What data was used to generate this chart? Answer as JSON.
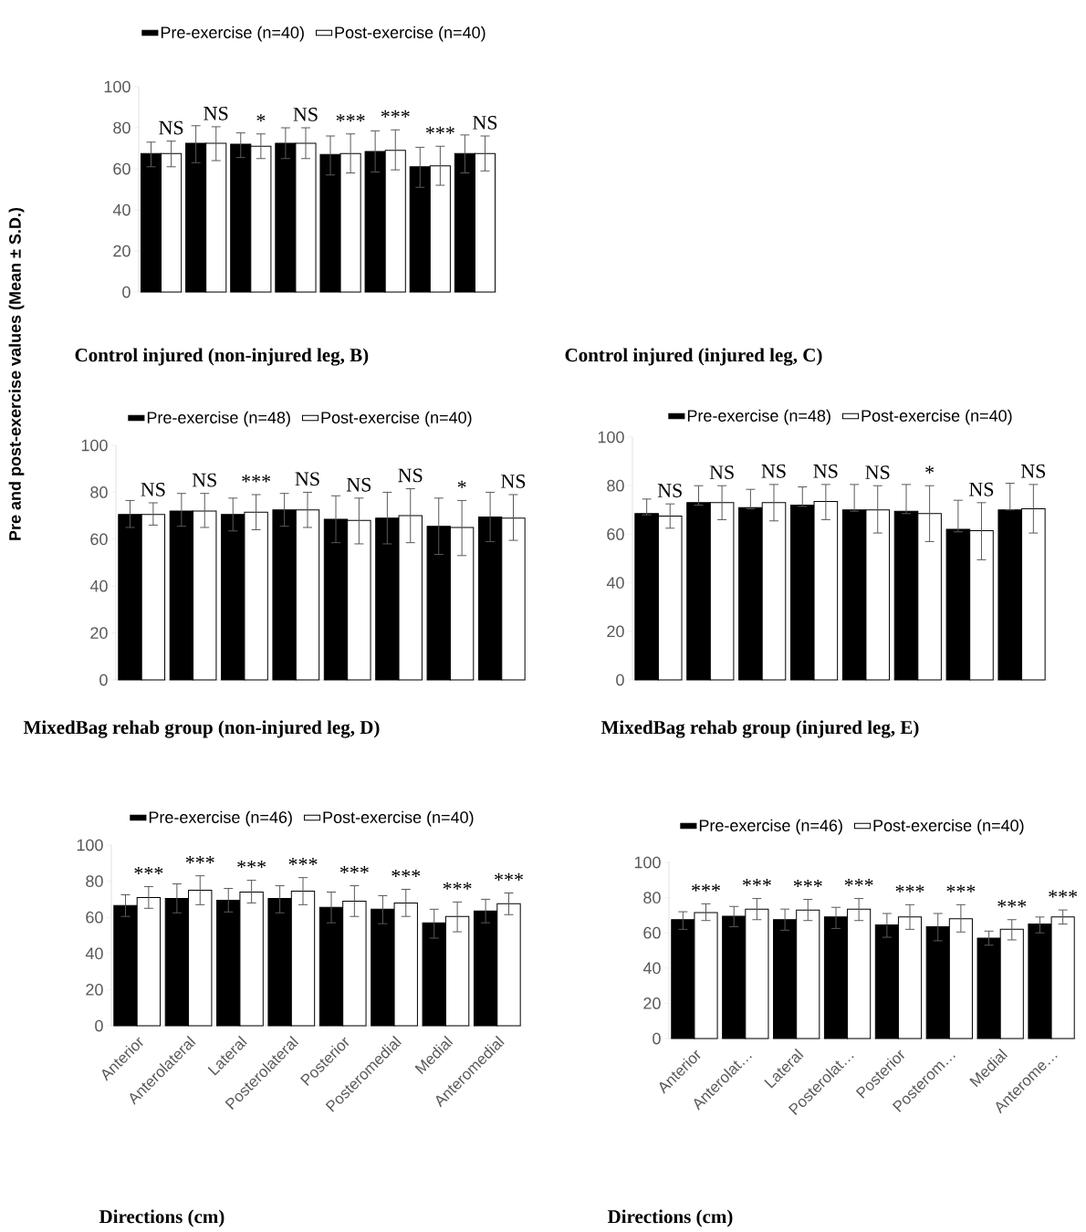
{
  "chart_data": [
    {
      "type": "bar",
      "categories": [
        null,
        null,
        null,
        null,
        null,
        null,
        null,
        null
      ],
      "ylim": [
        0,
        100
      ],
      "yticks": [
        0,
        20,
        40,
        60,
        80,
        100
      ],
      "legend": "top",
      "tick_labels": "y",
      "series": [
        {
          "name": "Pre-exercise (n=40)",
          "color": "#000000",
          "values": [
            67.5,
            72.5,
            72,
            72.5,
            67,
            68.5,
            61,
            67.5
          ],
          "errors": [
            [
              61,
              73
            ],
            [
              63,
              81
            ],
            [
              65.5,
              77.5
            ],
            [
              65,
              80
            ],
            [
              57,
              76
            ],
            [
              58.5,
              78.5
            ],
            [
              51,
              70.5
            ],
            [
              58,
              76.5
            ]
          ]
        },
        {
          "name": "Post-exercise (n=40)",
          "color": "#ffffff",
          "values": [
            67.5,
            72.5,
            71,
            72.5,
            67.5,
            69,
            61.5,
            67.5
          ],
          "errors": [
            [
              61,
              73.5
            ],
            [
              64,
              80.5
            ],
            [
              65,
              77
            ],
            [
              65,
              80
            ],
            [
              58,
              77
            ],
            [
              59.5,
              79
            ],
            [
              52,
              71
            ],
            [
              59,
              76
            ]
          ]
        }
      ],
      "annotations": [
        "NS",
        "NS",
        "*",
        "NS",
        "***",
        "***",
        "***",
        "NS"
      ]
    },
    {
      "type": "bar",
      "title": "Control injured (non-injured leg, B)",
      "ylabel": "Pre and post-exercise values (Mean ± S.D.)",
      "categories": [
        null,
        null,
        null,
        null,
        null,
        null,
        null,
        null
      ],
      "ylim": [
        0,
        100
      ],
      "yticks": [
        0,
        20,
        40,
        60,
        80,
        100
      ],
      "legend": "top",
      "tick_labels": "y",
      "series": [
        {
          "name": "Pre-exercise (n=48)",
          "color": "#000000",
          "values": [
            70.5,
            72,
            70.5,
            72.5,
            68.5,
            69,
            65.5,
            69.5
          ],
          "errors": [
            [
              65,
              76.5
            ],
            [
              65.5,
              79.5
            ],
            [
              63.5,
              77.5
            ],
            [
              65.5,
              79.5
            ],
            [
              58.5,
              78.5
            ],
            [
              58,
              80
            ],
            [
              53.5,
              77.5
            ],
            [
              59,
              80
            ]
          ]
        },
        {
          "name": "Post-exercise (n=40)",
          "color": "#ffffff",
          "values": [
            70.5,
            72,
            71.5,
            72.5,
            68,
            70,
            65,
            69
          ],
          "errors": [
            [
              66,
              75.5
            ],
            [
              65,
              79.5
            ],
            [
              64,
              79
            ],
            [
              65,
              80
            ],
            [
              58,
              77.5
            ],
            [
              58.5,
              81.5
            ],
            [
              53,
              76.5
            ],
            [
              59.5,
              79
            ]
          ]
        }
      ],
      "annotations": [
        "NS",
        "NS",
        "***",
        "NS",
        "NS",
        "NS",
        "*",
        "NS"
      ]
    },
    {
      "type": "bar",
      "title": "Control injured (injured leg, C)",
      "categories": [
        null,
        null,
        null,
        null,
        null,
        null,
        null,
        null
      ],
      "ylim": [
        0,
        100
      ],
      "yticks": [
        0,
        20,
        40,
        60,
        80,
        100
      ],
      "legend": "top",
      "tick_labels": "y",
      "series": [
        {
          "name": "Pre-exercise (n=48)",
          "color": "#000000",
          "values": [
            68.5,
            73,
            71,
            72,
            70,
            69.5,
            62,
            70
          ],
          "errors": [
            [
              68,
              74.5
            ],
            [
              72,
              80
            ],
            [
              70.5,
              78.5
            ],
            [
              71.5,
              79.5
            ],
            [
              69.5,
              80.5
            ],
            [
              68.5,
              80.5
            ],
            [
              61,
              74
            ],
            [
              70,
              81
            ]
          ]
        },
        {
          "name": "Post-exercise (n=40)",
          "color": "#ffffff",
          "values": [
            67.5,
            73,
            73,
            73.5,
            70,
            68.5,
            61.5,
            70.5
          ],
          "errors": [
            [
              62.5,
              72.5
            ],
            [
              66,
              80
            ],
            [
              65.5,
              80.5
            ],
            [
              66,
              80.5
            ],
            [
              60.5,
              80
            ],
            [
              57,
              80
            ],
            [
              49.5,
              73
            ],
            [
              60.5,
              80.5
            ]
          ]
        }
      ],
      "annotations": [
        "NS",
        "NS",
        "NS",
        "NS",
        "NS",
        "*",
        "NS",
        "NS"
      ]
    },
    {
      "type": "bar",
      "title": "MixedBag rehab group (non-injured leg, D)",
      "xlabel": "Directions (cm)",
      "categories": [
        "Anterior",
        "Anterolateral",
        "Lateral",
        "Posterolateral",
        "Posterior",
        "Posteromedial",
        "Medial",
        "Anteromedial"
      ],
      "ylim": [
        0,
        100
      ],
      "yticks": [
        0,
        20,
        40,
        60,
        80,
        100
      ],
      "legend": "top",
      "series": [
        {
          "name": "Pre-exercise (n=46)",
          "color": "#000000",
          "values": [
            66.5,
            70.5,
            69.5,
            70.5,
            65.5,
            64.5,
            57,
            63.5
          ],
          "errors": [
            [
              60.5,
              72.5
            ],
            [
              62.5,
              78.5
            ],
            [
              63,
              76
            ],
            [
              62.5,
              77.5
            ],
            [
              57,
              74
            ],
            [
              56.5,
              72
            ],
            [
              48.5,
              64.5
            ],
            [
              57,
              70
            ]
          ]
        },
        {
          "name": "Post-exercise (n=40)",
          "color": "#ffffff",
          "values": [
            71,
            75,
            74,
            74.5,
            69,
            68,
            60.5,
            67.5
          ],
          "errors": [
            [
              65,
              77
            ],
            [
              67,
              83
            ],
            [
              68,
              80.5
            ],
            [
              67,
              82
            ],
            [
              60.5,
              77.5
            ],
            [
              60.5,
              75.5
            ],
            [
              52,
              68.5
            ],
            [
              61.5,
              73.5
            ]
          ]
        }
      ],
      "annotations": [
        "***",
        "***",
        "***",
        "***",
        "***",
        "***",
        "***",
        "***"
      ]
    },
    {
      "type": "bar",
      "title": "MixedBag rehab group (injured leg, E)",
      "xlabel": "Directions (cm)",
      "categories": [
        "Anterior",
        "Anterolat…",
        "Lateral",
        "Posterolat…",
        "Posterior",
        "Posterom…",
        "Medial",
        "Anterome…"
      ],
      "ylim": [
        0,
        100
      ],
      "yticks": [
        0,
        20,
        40,
        60,
        80,
        100
      ],
      "legend": "top",
      "series": [
        {
          "name": "Pre-exercise (n=46)",
          "color": "#000000",
          "values": [
            67.5,
            69.5,
            67.5,
            69,
            64.5,
            63.5,
            57,
            65
          ],
          "errors": [
            [
              62,
              72
            ],
            [
              63.5,
              75
            ],
            [
              61.5,
              73.5
            ],
            [
              62.5,
              74.5
            ],
            [
              57.5,
              71
            ],
            [
              55.5,
              71
            ],
            [
              53,
              61
            ],
            [
              60,
              69
            ]
          ]
        },
        {
          "name": "Post-exercise (n=40)",
          "color": "#ffffff",
          "values": [
            71.5,
            73.5,
            73,
            73.5,
            69,
            68,
            62,
            69
          ],
          "errors": [
            [
              67,
              76.5
            ],
            [
              67.5,
              79.5
            ],
            [
              67,
              79
            ],
            [
              67,
              79.5
            ],
            [
              62,
              76
            ],
            [
              60.5,
              76
            ],
            [
              56,
              67.5
            ],
            [
              65,
              73
            ]
          ]
        }
      ],
      "annotations": [
        "***",
        "***",
        "***",
        "***",
        "***",
        "***",
        "***",
        "***"
      ]
    }
  ]
}
